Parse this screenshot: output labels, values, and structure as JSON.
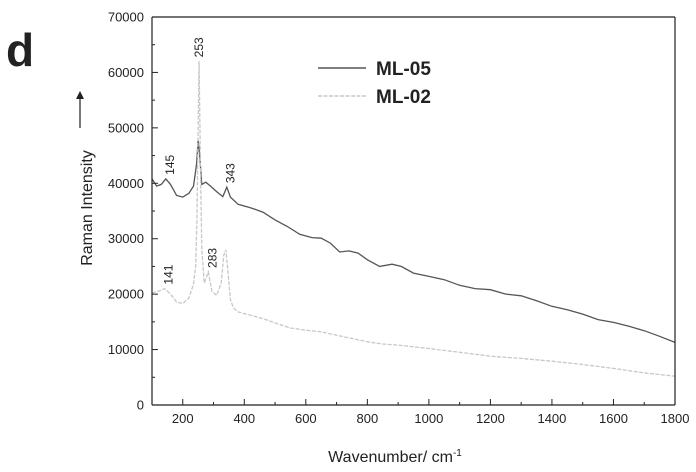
{
  "panel_label": "d",
  "colors": {
    "ML-05": "#555555",
    "ML-02": "#c8c8c8",
    "axis": "#222222"
  },
  "chart_data": {
    "type": "line",
    "title": "",
    "xlabel": "Wavenumber/ cm",
    "xlabel_superscript": "-1",
    "ylabel": "Raman Intensity",
    "xlim": [
      100,
      1800
    ],
    "ylim": [
      0,
      70000
    ],
    "xticks": [
      200,
      400,
      600,
      800,
      1000,
      1200,
      1400,
      1600,
      1800
    ],
    "yticks": [
      0,
      10000,
      20000,
      30000,
      40000,
      50000,
      60000,
      70000
    ],
    "grid": false,
    "legend_position": "top-center",
    "series": [
      {
        "name": "ML-05",
        "color": "#555555",
        "points": [
          [
            100,
            40800
          ],
          [
            115,
            39500
          ],
          [
            130,
            39800
          ],
          [
            145,
            40800
          ],
          [
            160,
            39800
          ],
          [
            180,
            37800
          ],
          [
            200,
            37500
          ],
          [
            220,
            38200
          ],
          [
            235,
            39500
          ],
          [
            245,
            43500
          ],
          [
            250,
            47800
          ],
          [
            255,
            45000
          ],
          [
            262,
            39800
          ],
          [
            275,
            40200
          ],
          [
            290,
            39500
          ],
          [
            310,
            38500
          ],
          [
            330,
            37600
          ],
          [
            343,
            39300
          ],
          [
            355,
            37500
          ],
          [
            380,
            36200
          ],
          [
            420,
            35600
          ],
          [
            460,
            34800
          ],
          [
            500,
            33400
          ],
          [
            540,
            32200
          ],
          [
            580,
            30800
          ],
          [
            620,
            30200
          ],
          [
            650,
            30100
          ],
          [
            680,
            29200
          ],
          [
            710,
            27600
          ],
          [
            740,
            27800
          ],
          [
            770,
            27400
          ],
          [
            800,
            26200
          ],
          [
            840,
            25000
          ],
          [
            880,
            25400
          ],
          [
            910,
            25000
          ],
          [
            950,
            23800
          ],
          [
            1000,
            23200
          ],
          [
            1050,
            22600
          ],
          [
            1100,
            21600
          ],
          [
            1150,
            21000
          ],
          [
            1200,
            20800
          ],
          [
            1250,
            20000
          ],
          [
            1300,
            19700
          ],
          [
            1350,
            18800
          ],
          [
            1400,
            17800
          ],
          [
            1450,
            17200
          ],
          [
            1500,
            16400
          ],
          [
            1550,
            15400
          ],
          [
            1600,
            14900
          ],
          [
            1650,
            14200
          ],
          [
            1700,
            13400
          ],
          [
            1750,
            12400
          ],
          [
            1800,
            11300
          ]
        ]
      },
      {
        "name": "ML-02",
        "color": "#c8c8c8",
        "points": [
          [
            100,
            20200
          ],
          [
            125,
            20600
          ],
          [
            141,
            21000
          ],
          [
            160,
            20000
          ],
          [
            180,
            18600
          ],
          [
            200,
            18300
          ],
          [
            220,
            19300
          ],
          [
            235,
            21800
          ],
          [
            242,
            25000
          ],
          [
            246,
            33000
          ],
          [
            250,
            50000
          ],
          [
            253,
            62000
          ],
          [
            257,
            45000
          ],
          [
            262,
            28000
          ],
          [
            270,
            22000
          ],
          [
            283,
            24000
          ],
          [
            295,
            20500
          ],
          [
            310,
            19800
          ],
          [
            325,
            22000
          ],
          [
            333,
            27000
          ],
          [
            340,
            28000
          ],
          [
            347,
            24000
          ],
          [
            355,
            19000
          ],
          [
            365,
            17500
          ],
          [
            380,
            16800
          ],
          [
            420,
            16200
          ],
          [
            460,
            15600
          ],
          [
            500,
            14800
          ],
          [
            550,
            13900
          ],
          [
            600,
            13500
          ],
          [
            650,
            13200
          ],
          [
            700,
            12600
          ],
          [
            750,
            12000
          ],
          [
            800,
            11400
          ],
          [
            850,
            11000
          ],
          [
            900,
            10800
          ],
          [
            1000,
            10200
          ],
          [
            1100,
            9500
          ],
          [
            1200,
            8800
          ],
          [
            1300,
            8400
          ],
          [
            1400,
            7900
          ],
          [
            1500,
            7300
          ],
          [
            1600,
            6600
          ],
          [
            1700,
            5800
          ],
          [
            1800,
            5200
          ]
        ]
      }
    ],
    "annotations": [
      {
        "text": "253",
        "x": 253,
        "y": 62000,
        "series": "ML-02"
      },
      {
        "text": "145",
        "x": 145,
        "y": 40800,
        "series": "ML-05"
      },
      {
        "text": "343",
        "x": 343,
        "y": 39300,
        "series": "ML-05"
      },
      {
        "text": "141",
        "x": 141,
        "y": 21000,
        "series": "ML-02"
      },
      {
        "text": "283",
        "x": 283,
        "y": 24000,
        "series": "ML-02"
      }
    ]
  }
}
